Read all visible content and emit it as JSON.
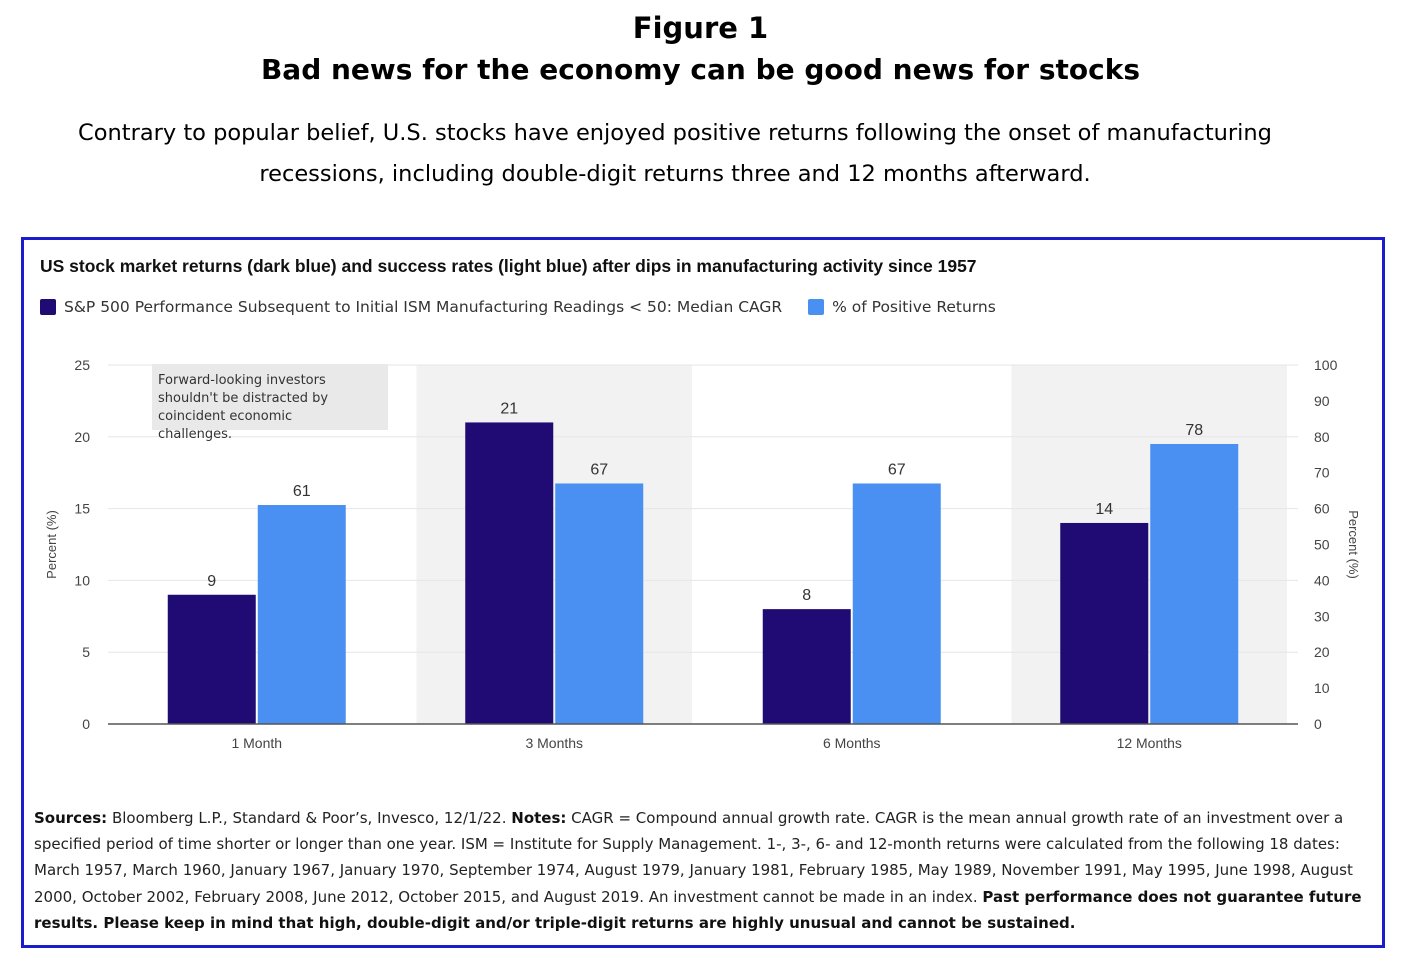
{
  "header": {
    "figure_number": "Figure 1",
    "title": "Bad news for the economy can be good news for stocks",
    "subtitle": "Contrary to popular belief, U.S. stocks have enjoyed positive returns following the onset of manufacturing recessions, including double-digit returns three and 12 months afterward."
  },
  "chart_data": {
    "type": "bar",
    "title": "US stock market returns (dark blue) and success rates (light blue) after dips in manufacturing activity since 1957",
    "categories": [
      "1 Month",
      "3 Months",
      "6 Months",
      "12 Months"
    ],
    "series": [
      {
        "name": "S&P 500 Performance Subsequent to Initial ISM Manufacturing Readings < 50: Median CAGR",
        "axis": "left",
        "color": "#1f0b73",
        "values": [
          9,
          21,
          8,
          14
        ]
      },
      {
        "name": "% of Positive Returns",
        "axis": "right",
        "color": "#4a90f2",
        "values": [
          61,
          67,
          67,
          78
        ]
      }
    ],
    "ylabel_left": "Percent (%)",
    "ylabel_right": "Percent (%)",
    "ylim_left": [
      0,
      25
    ],
    "yticks_left": [
      0,
      5,
      10,
      15,
      20,
      25
    ],
    "ylim_right": [
      0,
      100
    ],
    "yticks_right": [
      0,
      10,
      20,
      30,
      40,
      50,
      60,
      70,
      80,
      90,
      100
    ],
    "grid": true,
    "shaded_categories": [
      "3 Months",
      "12 Months"
    ],
    "legend_position": "top-left",
    "annotation": "Forward-looking investors shouldn't be distracted by coincident economic challenges."
  },
  "notes": {
    "sources_label": "Sources:",
    "sources_text": " Bloomberg L.P., Standard & Poor’s, Invesco, 12/1/22. ",
    "notes_label": "Notes:",
    "notes_text": " CAGR = Compound annual growth rate. CAGR is the mean annual growth rate of an investment over a specified period of time shorter or longer than one year. ISM = Institute for Supply Management. 1-, 3-, 6- and 12-month returns were calculated from the following 18 dates: March 1957, March 1960, January 1967, January 1970, September 1974, August 1979, January 1981, February 1985, May 1989, November 1991, May 1995, June 1998, August 2000, October 2002, February 2008, June 2012, October 2015, and August 2019. An investment cannot be made in an index. ",
    "disclaimer": "Past performance does not guarantee future results. Please keep in mind that high, double-digit and/or triple-digit returns are highly unusual and cannot be sustained."
  }
}
